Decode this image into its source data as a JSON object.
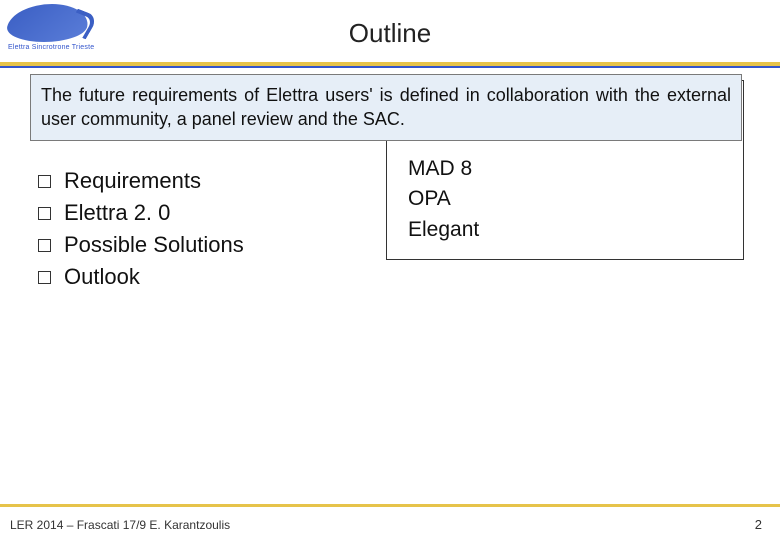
{
  "header": {
    "title": "Outline",
    "logo_text": "Elettra Sincrotrone Trieste",
    "accent_color": "#3355cc",
    "yellow_color": "#e6c34a"
  },
  "callout": {
    "text": "The future requirements of Elettra users' is defined in collaboration with the external user community, a panel review and the SAC.",
    "background": "#e6eef7",
    "border": "#7a7a7a",
    "fontsize": 18
  },
  "bullets": {
    "items": [
      "Requirements",
      "Elettra 2. 0",
      "Possible Solutions",
      "Outlook"
    ],
    "fontsize": 22
  },
  "tools": {
    "items": [
      "MAD 8",
      "OPA",
      "Elegant"
    ],
    "fontsize": 21,
    "box_border": "#333333"
  },
  "footer": {
    "left": "LER 2014 – Frascati 17/9   E. Karantzoulis",
    "page": "2",
    "fontsize": 12
  }
}
